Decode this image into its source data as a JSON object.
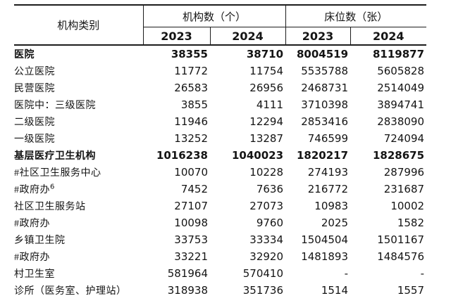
{
  "table": {
    "header": {
      "category_label": "机构类别",
      "group1": "机构数（个）",
      "group2": "床位数（张）",
      "years": [
        "2023",
        "2024",
        "2023",
        "2024"
      ]
    },
    "rows": [
      {
        "label": "医院",
        "indent": 0,
        "bold": true,
        "values": [
          "38355",
          "38710",
          "8004519",
          "8119877"
        ]
      },
      {
        "label": "公立医院",
        "indent": 2,
        "bold": false,
        "values": [
          "11772",
          "11754",
          "5535788",
          "5605828"
        ]
      },
      {
        "label": "民营医院",
        "indent": 2,
        "bold": false,
        "values": [
          "26583",
          "26956",
          "2468731",
          "2514049"
        ]
      },
      {
        "label": "医院中：三级医院",
        "indent": 0,
        "bold": false,
        "values": [
          "3855",
          "4111",
          "3710398",
          "3894741"
        ]
      },
      {
        "label": "二级医院",
        "indent": 4,
        "bold": false,
        "values": [
          "11946",
          "12294",
          "2853416",
          "2838090"
        ]
      },
      {
        "label": "一级医院",
        "indent": 4,
        "bold": false,
        "values": [
          "13252",
          "13287",
          "746599",
          "724094"
        ]
      },
      {
        "label": "基层医疗卫生机构",
        "indent": 0,
        "bold": true,
        "values": [
          "1016238",
          "1040023",
          "1820217",
          "1828675"
        ]
      },
      {
        "label": "#社区卫生服务中心",
        "indent": 1,
        "bold": false,
        "values": [
          "10070",
          "10228",
          "274193",
          "287996"
        ]
      },
      {
        "label": "#政府办",
        "sup": "6",
        "indent": 3,
        "bold": false,
        "values": [
          "7452",
          "7636",
          "216772",
          "231687"
        ]
      },
      {
        "label": "社区卫生服务站",
        "indent": 2,
        "bold": false,
        "values": [
          "27107",
          "27073",
          "10983",
          "10002"
        ]
      },
      {
        "label": "#政府办",
        "indent": 3,
        "bold": false,
        "values": [
          "10098",
          "9760",
          "2025",
          "1582"
        ]
      },
      {
        "label": "乡镇卫生院",
        "indent": 2,
        "bold": false,
        "values": [
          "33753",
          "33334",
          "1504504",
          "1501167"
        ]
      },
      {
        "label": "#政府办",
        "indent": 3,
        "bold": false,
        "values": [
          "33221",
          "32920",
          "1481893",
          "1484576"
        ]
      },
      {
        "label": "村卫生室",
        "indent": 2,
        "bold": false,
        "values": [
          "581964",
          "570410",
          "-",
          "-"
        ]
      },
      {
        "label": "诊所（医务室、护理站）",
        "indent": 2,
        "bold": false,
        "values": [
          "318938",
          "351736",
          "1514",
          "1557"
        ]
      }
    ],
    "colors": {
      "text": "#141414",
      "border": "#1c1c1c",
      "background": "#ffffff"
    }
  }
}
